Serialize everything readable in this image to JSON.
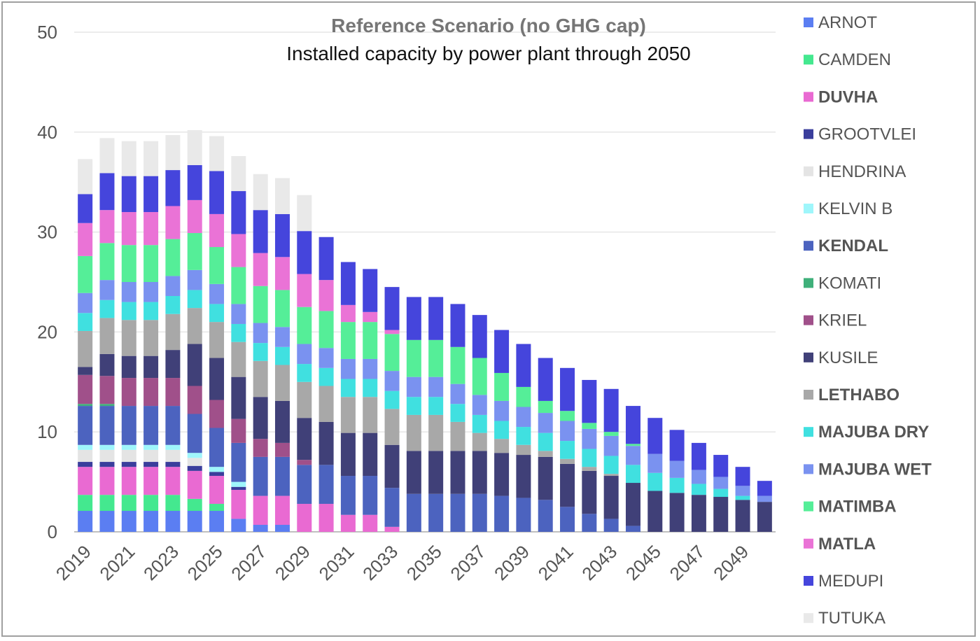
{
  "chart_data": {
    "type": "bar",
    "stacked": true,
    "title": "Reference Scenario (no GHG cap)",
    "subtitle": "Installed capacity by power plant through 2050",
    "xlabel": "",
    "ylabel": "",
    "ylim": [
      0,
      50
    ],
    "yticks": [
      "0",
      "10",
      "20",
      "30",
      "40",
      "50"
    ],
    "grid": true,
    "legend_position": "right",
    "categories": [
      "2019",
      "2020",
      "2021",
      "2022",
      "2023",
      "2024",
      "2025",
      "2026",
      "2027",
      "2028",
      "2029",
      "2030",
      "2031",
      "2032",
      "2033",
      "2034",
      "2035",
      "2036",
      "2037",
      "2038",
      "2039",
      "2040",
      "2041",
      "2042",
      "2043",
      "2044",
      "2045",
      "2046",
      "2047",
      "2048",
      "2049",
      "2050"
    ],
    "x_tick_labels": [
      "2019",
      "",
      "2021",
      "",
      "2023",
      "",
      "2025",
      "",
      "2027",
      "",
      "2029",
      "",
      "2031",
      "",
      "2033",
      "",
      "2035",
      "",
      "2037",
      "",
      "2039",
      "",
      "2041",
      "",
      "2043",
      "",
      "2045",
      "",
      "2047",
      "",
      "2049",
      ""
    ],
    "series": [
      {
        "name": "ARNOT",
        "color": "#5b7ef2",
        "bold": false,
        "values": [
          2.1,
          2.1,
          2.1,
          2.1,
          2.1,
          2.1,
          2.1,
          1.3,
          0.7,
          0.7,
          0,
          0,
          0,
          0,
          0,
          0,
          0,
          0,
          0,
          0,
          0,
          0,
          0,
          0,
          0,
          0,
          0,
          0,
          0,
          0,
          0,
          0
        ]
      },
      {
        "name": "CAMDEN",
        "color": "#44e88f",
        "bold": false,
        "values": [
          1.6,
          1.6,
          1.6,
          1.6,
          1.6,
          1.2,
          0.7,
          0,
          0,
          0,
          0,
          0,
          0,
          0,
          0,
          0,
          0,
          0,
          0,
          0,
          0,
          0,
          0,
          0,
          0,
          0,
          0,
          0,
          0,
          0,
          0,
          0
        ]
      },
      {
        "name": "DUVHA",
        "color": "#e96ad2",
        "bold": true,
        "values": [
          2.8,
          2.8,
          2.8,
          2.8,
          2.8,
          2.8,
          2.8,
          2.9,
          2.9,
          2.9,
          2.8,
          2.8,
          1.7,
          1.7,
          0.5,
          0,
          0,
          0,
          0,
          0,
          0,
          0,
          0,
          0,
          0,
          0,
          0,
          0,
          0,
          0,
          0,
          0
        ]
      },
      {
        "name": "GROOTVLEI",
        "color": "#3a3e9c",
        "bold": false,
        "values": [
          0.5,
          0.5,
          0.5,
          0.5,
          0.5,
          0.5,
          0.4,
          0.3,
          0,
          0,
          0,
          0,
          0,
          0,
          0,
          0,
          0,
          0,
          0,
          0,
          0,
          0,
          0,
          0,
          0,
          0,
          0,
          0,
          0,
          0,
          0,
          0
        ]
      },
      {
        "name": "HENDRINA",
        "color": "#e4e4e4",
        "bold": false,
        "values": [
          1.2,
          1.2,
          1.2,
          1.2,
          1.2,
          0.8,
          0,
          0,
          0,
          0,
          0,
          0,
          0,
          0,
          0,
          0,
          0,
          0,
          0,
          0,
          0,
          0,
          0,
          0,
          0,
          0,
          0,
          0,
          0,
          0,
          0,
          0
        ]
      },
      {
        "name": "KELVIN B",
        "color": "#9ff6fb",
        "bold": false,
        "values": [
          0.5,
          0.5,
          0.5,
          0.5,
          0.5,
          0.5,
          0.5,
          0.5,
          0,
          0,
          0,
          0,
          0,
          0,
          0,
          0,
          0,
          0,
          0,
          0,
          0,
          0,
          0,
          0,
          0,
          0,
          0,
          0,
          0,
          0,
          0,
          0
        ]
      },
      {
        "name": "KENDAL",
        "color": "#4c63bf",
        "bold": true,
        "values": [
          3.9,
          3.9,
          3.9,
          3.9,
          3.9,
          3.9,
          3.9,
          3.9,
          3.9,
          3.9,
          3.9,
          3.9,
          3.9,
          3.9,
          3.9,
          3.8,
          3.8,
          3.8,
          3.8,
          3.6,
          3.4,
          3.2,
          2.5,
          1.8,
          1.3,
          0.6,
          0,
          0,
          0,
          0,
          0,
          0
        ]
      },
      {
        "name": "KOMATI",
        "color": "#3fb07a",
        "bold": false,
        "values": [
          0.2,
          0.2,
          0,
          0,
          0,
          0,
          0,
          0,
          0,
          0,
          0,
          0,
          0,
          0,
          0,
          0,
          0,
          0,
          0,
          0,
          0,
          0,
          0,
          0,
          0,
          0,
          0,
          0,
          0,
          0,
          0,
          0
        ]
      },
      {
        "name": "KRIEL",
        "color": "#a0508a",
        "bold": false,
        "values": [
          2.9,
          2.8,
          2.8,
          2.8,
          2.8,
          2.8,
          2.8,
          2.4,
          1.8,
          1.4,
          0.5,
          0,
          0,
          0,
          0,
          0,
          0,
          0,
          0,
          0,
          0,
          0,
          0,
          0,
          0,
          0,
          0,
          0,
          0,
          0,
          0,
          0
        ]
      },
      {
        "name": "KUSILE",
        "color": "#404078",
        "bold": false,
        "values": [
          0.8,
          2.2,
          2.2,
          2.2,
          2.8,
          4.2,
          4.2,
          4.2,
          4.2,
          4.2,
          4.2,
          4.3,
          4.3,
          4.3,
          4.3,
          4.3,
          4.3,
          4.3,
          4.3,
          4.3,
          4.3,
          4.3,
          4.3,
          4.3,
          4.3,
          4.3,
          4.1,
          3.9,
          3.7,
          3.5,
          3.2,
          3.0
        ]
      },
      {
        "name": "LETHABO",
        "color": "#a8a8a8",
        "bold": true,
        "values": [
          3.6,
          3.6,
          3.6,
          3.6,
          3.6,
          3.6,
          3.6,
          3.5,
          3.6,
          3.6,
          3.6,
          3.6,
          3.6,
          3.6,
          3.6,
          3.6,
          3.6,
          2.9,
          1.8,
          1.4,
          1.0,
          0.6,
          0.5,
          0.4,
          0.2,
          0,
          0,
          0,
          0,
          0,
          0,
          0
        ]
      },
      {
        "name": "MAJUBA DRY",
        "color": "#40e0e0",
        "bold": true,
        "values": [
          1.8,
          1.8,
          1.8,
          1.8,
          1.8,
          1.8,
          1.8,
          1.8,
          1.8,
          1.8,
          1.8,
          1.8,
          1.8,
          1.8,
          1.8,
          1.8,
          1.8,
          1.8,
          1.8,
          1.8,
          1.8,
          1.8,
          1.8,
          1.8,
          1.8,
          1.8,
          1.8,
          1.5,
          1.1,
          0.8,
          0.4,
          0
        ]
      },
      {
        "name": "MAJUBA WET",
        "color": "#7a92f0",
        "bold": true,
        "values": [
          2.0,
          2.0,
          2.0,
          2.0,
          2.0,
          2.0,
          2.0,
          2.0,
          2.0,
          2.0,
          2.0,
          2.0,
          2.0,
          2.0,
          2.0,
          2.0,
          2.0,
          2.0,
          2.0,
          2.0,
          2.0,
          2.0,
          2.0,
          2.0,
          2.0,
          1.9,
          1.9,
          1.7,
          1.4,
          1.2,
          1.0,
          0.6
        ]
      },
      {
        "name": "MATIMBA",
        "color": "#55ee98",
        "bold": true,
        "values": [
          3.7,
          3.7,
          3.7,
          3.7,
          3.7,
          3.7,
          3.7,
          3.7,
          3.7,
          3.7,
          3.7,
          3.7,
          3.7,
          3.7,
          3.7,
          3.7,
          3.7,
          3.7,
          3.7,
          2.8,
          2.0,
          1.2,
          1.0,
          0.6,
          0.4,
          0.2,
          0,
          0,
          0,
          0,
          0,
          0
        ]
      },
      {
        "name": "MATLA",
        "color": "#ea73d6",
        "bold": true,
        "values": [
          3.3,
          3.3,
          3.3,
          3.3,
          3.3,
          3.3,
          3.3,
          3.3,
          3.3,
          3.3,
          3.3,
          3.1,
          1.7,
          1.0,
          0.4,
          0,
          0,
          0,
          0,
          0,
          0,
          0,
          0,
          0,
          0,
          0,
          0,
          0,
          0,
          0,
          0,
          0
        ]
      },
      {
        "name": "MEDUPI",
        "color": "#4545dc",
        "bold": false,
        "values": [
          2.9,
          3.7,
          3.6,
          3.6,
          3.6,
          3.5,
          4.3,
          4.3,
          4.3,
          4.3,
          4.3,
          4.3,
          4.3,
          4.3,
          4.3,
          4.3,
          4.3,
          4.3,
          4.3,
          4.3,
          4.3,
          4.3,
          4.3,
          4.3,
          4.3,
          3.8,
          3.6,
          3.1,
          2.7,
          2.2,
          1.9,
          1.5
        ]
      },
      {
        "name": "TUTUKA",
        "color": "#e9e9e9",
        "bold": false,
        "values": [
          3.5,
          3.5,
          3.5,
          3.5,
          3.5,
          3.5,
          3.5,
          3.5,
          3.6,
          3.6,
          3.6,
          0,
          0,
          0,
          0,
          0,
          0,
          0,
          0,
          0,
          0,
          0,
          0,
          0,
          0,
          0,
          0,
          0,
          0,
          0,
          0,
          0
        ]
      }
    ]
  }
}
